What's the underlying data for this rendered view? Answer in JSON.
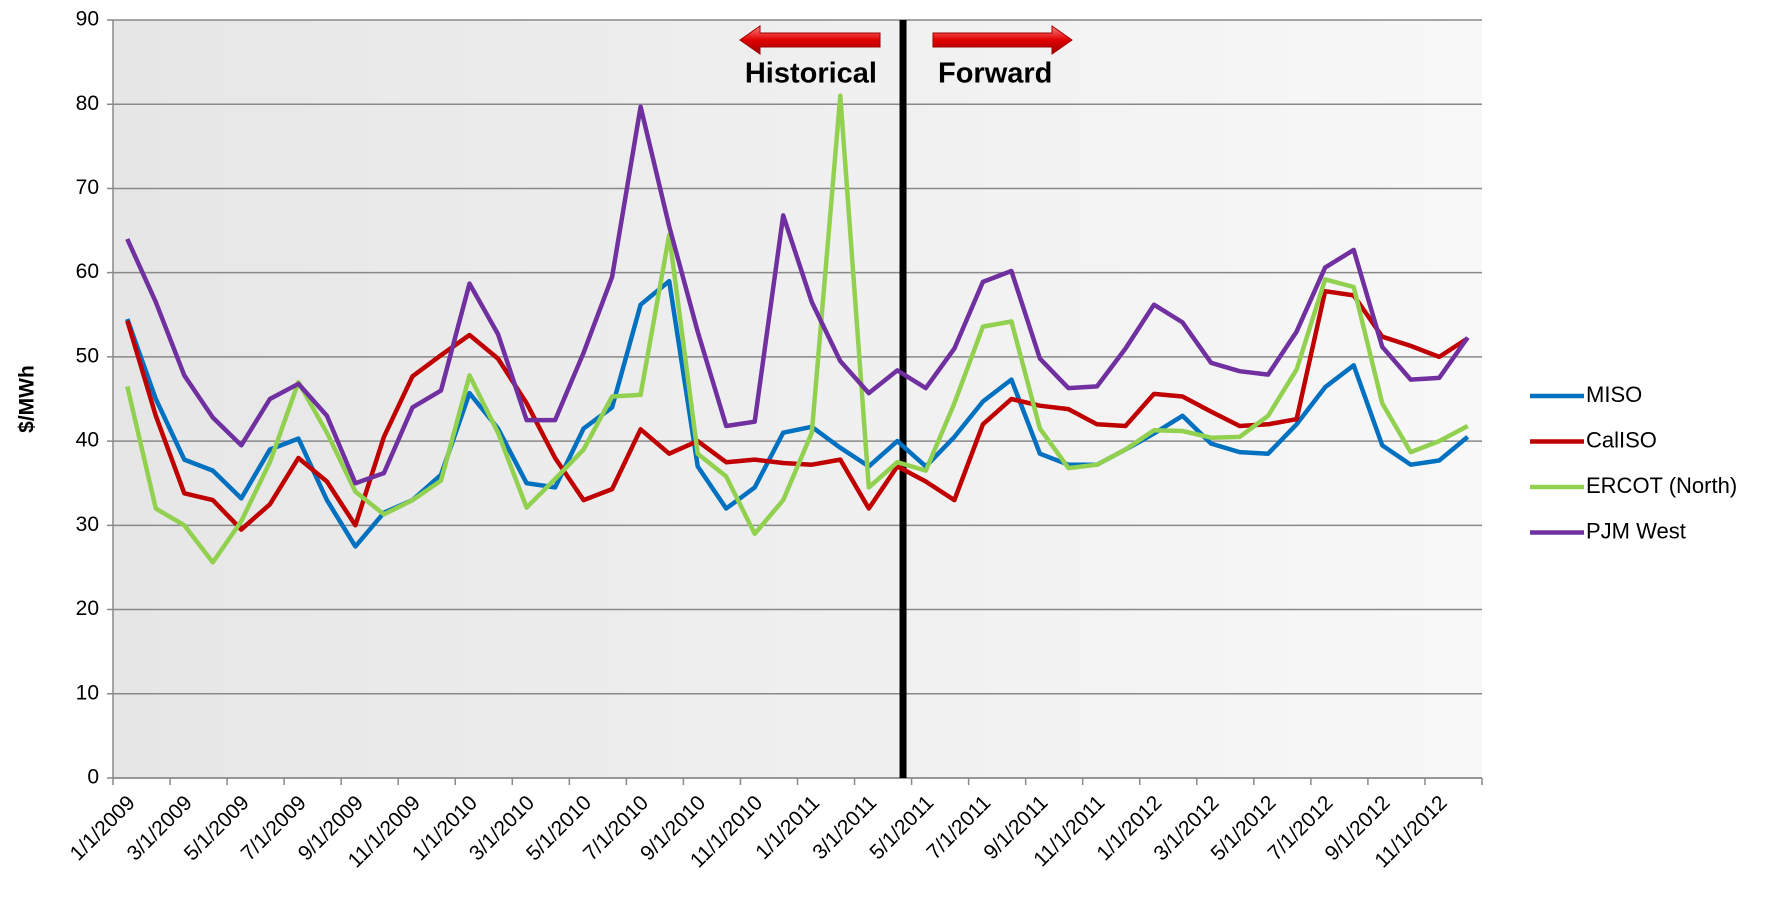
{
  "chart_data": {
    "type": "line",
    "y_label": "$/MWh",
    "annotations": [
      "Historical",
      "Forward"
    ],
    "categories": [
      "1/1/2009",
      null,
      "3/1/2009",
      null,
      "5/1/2009",
      null,
      "7/1/2009",
      null,
      "9/1/2009",
      null,
      "11/1/2009",
      null,
      "1/1/2010",
      null,
      "3/1/2010",
      null,
      "5/1/2010",
      null,
      "7/1/2010",
      null,
      "9/1/2010",
      null,
      "11/1/2010",
      null,
      "1/1/2011",
      null,
      "3/1/2011",
      null,
      "5/1/2011",
      null,
      "7/1/2011",
      null,
      "9/1/2011",
      null,
      "11/1/2011",
      null,
      "1/1/2012",
      null,
      "3/1/2012",
      null,
      "5/1/2012",
      null,
      "7/1/2012",
      null,
      "9/1/2012",
      null,
      "11/1/2012",
      null
    ],
    "series": [
      {
        "name": "MISO",
        "color": "#0070c0",
        "values": [
          54.5,
          45,
          37.8,
          36.5,
          33.2,
          39,
          40.3,
          33,
          27.5,
          31.5,
          33,
          36,
          45.7,
          41.5,
          35,
          34.5,
          41.5,
          44,
          56.2,
          59,
          37,
          32,
          34.5,
          41,
          41.7,
          39.2,
          37,
          40,
          37,
          40.5,
          44.7,
          47.3,
          38.5,
          37.2,
          37.2,
          39,
          40.9,
          43,
          39.7,
          38.7,
          38.5,
          42,
          46.4,
          49,
          39.5,
          37.2,
          37.7,
          40.5
        ]
      },
      {
        "name": "CalISO",
        "color": "#c00000",
        "values": [
          54.3,
          43,
          33.8,
          33,
          29.5,
          32.5,
          38,
          35.2,
          30,
          40.5,
          47.7,
          50.2,
          52.6,
          49.8,
          44.5,
          38,
          33,
          34.3,
          41.4,
          38.5,
          40,
          37.5,
          37.8,
          37.4,
          37.2,
          37.8,
          32,
          37,
          35.2,
          33,
          42,
          45,
          44.2,
          43.8,
          42,
          41.8,
          45.6,
          45.3,
          43.5,
          41.8,
          42,
          42.6,
          57.8,
          57.3,
          52.4,
          51.3,
          50,
          52.2
        ]
      },
      {
        "name": "ERCOT (North)",
        "color": "#92d050",
        "values": [
          46.5,
          32,
          30,
          25.6,
          30.5,
          37.5,
          47,
          41,
          34,
          31.3,
          33,
          35.3,
          47.8,
          41,
          32.1,
          35.5,
          39,
          45.3,
          45.5,
          64.5,
          38.5,
          35.8,
          29,
          33,
          41,
          81,
          34.5,
          37.5,
          36.5,
          44.5,
          53.6,
          54.2,
          41.5,
          36.8,
          37.2,
          39,
          41.3,
          41.2,
          40.4,
          40.5,
          43,
          48.5,
          59.2,
          58.3,
          44.5,
          38.7,
          40,
          41.8
        ]
      },
      {
        "name": "PJM West",
        "color": "#7030a0",
        "values": [
          64,
          56.5,
          47.8,
          42.8,
          39.5,
          45,
          46.8,
          43,
          35,
          36.2,
          44,
          46,
          58.7,
          52.7,
          42.5,
          42.5,
          50.5,
          59.5,
          79.7,
          65.5,
          53,
          41.8,
          42.3,
          66.8,
          56.5,
          49.5,
          45.7,
          48.4,
          46.3,
          51,
          58.9,
          60.2,
          49.8,
          46.3,
          46.5,
          51,
          56.2,
          54.1,
          49.3,
          48.3,
          47.9,
          53,
          60.6,
          62.7,
          51.2,
          47.3,
          47.5,
          52.3
        ]
      }
    ],
    "ylim": [
      0,
      90
    ],
    "yticks": [
      0,
      10,
      20,
      30,
      40,
      50,
      60,
      70,
      80,
      90
    ],
    "grid": true,
    "legend": "right"
  }
}
